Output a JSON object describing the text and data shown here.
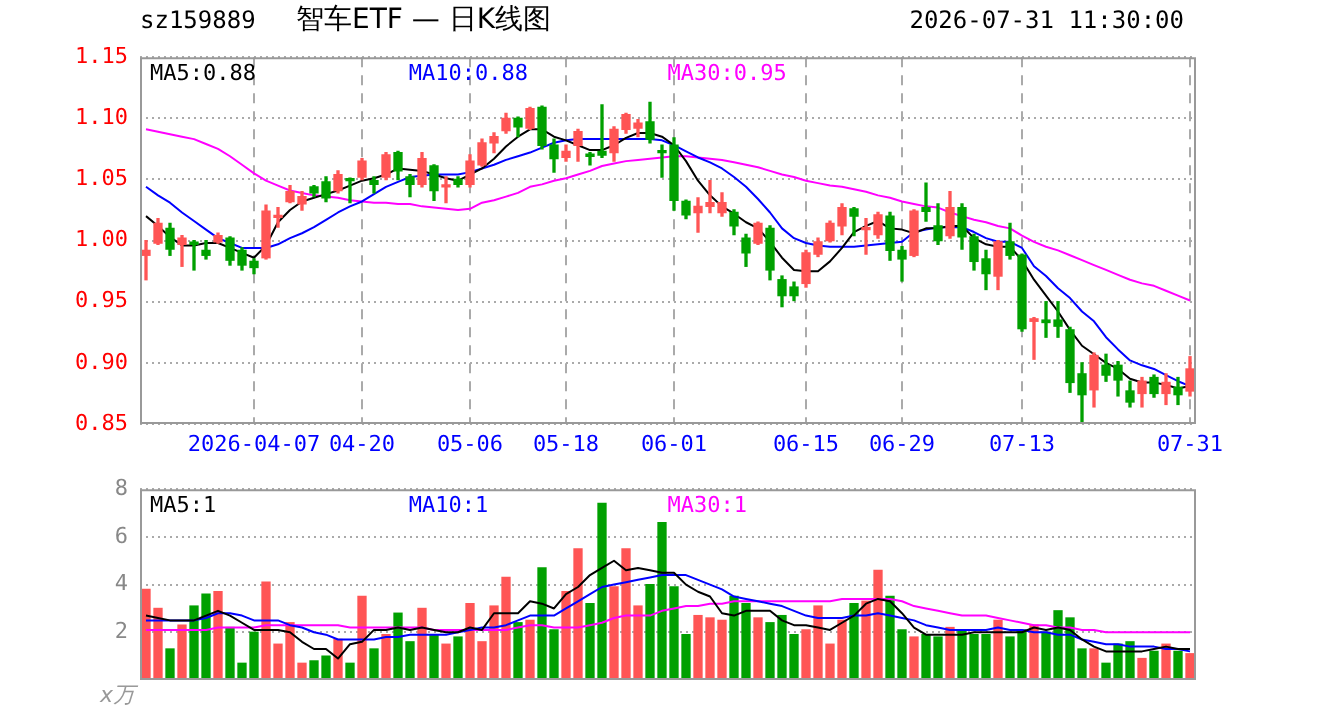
{
  "chart_data": [
    {
      "type": "candlestick",
      "title": "智车ETF — 日K线图",
      "annotations": [
        "sz159889",
        "2026-07-31 11:30:00"
      ],
      "categories": [
        null,
        null,
        null,
        null,
        null,
        null,
        null,
        null,
        null,
        "2026-04-07",
        null,
        null,
        null,
        null,
        null,
        null,
        null,
        null,
        "04-20",
        null,
        null,
        null,
        null,
        null,
        null,
        null,
        null,
        "05-06",
        null,
        null,
        null,
        null,
        null,
        null,
        null,
        "05-18",
        null,
        null,
        null,
        null,
        null,
        null,
        null,
        null,
        "06-01",
        null,
        null,
        null,
        null,
        null,
        null,
        null,
        null,
        null,
        null,
        "06-15",
        null,
        null,
        null,
        null,
        null,
        null,
        null,
        "06-29",
        null,
        null,
        null,
        null,
        null,
        null,
        null,
        null,
        null,
        "07-13",
        null,
        null,
        null,
        null,
        null,
        null,
        null,
        null,
        null,
        null,
        null,
        null,
        null,
        "07-31"
      ],
      "ohlc": [
        [
          0.988,
          1.0,
          0.968,
          0.992
        ],
        [
          0.998,
          1.018,
          0.997,
          1.014
        ],
        [
          1.01,
          1.014,
          0.988,
          0.993
        ],
        [
          0.997,
          1.004,
          0.979,
          1.002
        ],
        [
          0.998,
          1.0,
          0.976,
          0.997
        ],
        [
          0.992,
          1.0,
          0.985,
          0.988
        ],
        [
          0.999,
          1.006,
          0.998,
          1.004
        ],
        [
          1.002,
          1.003,
          0.98,
          0.984
        ],
        [
          0.992,
          0.994,
          0.976,
          0.98
        ],
        [
          0.983,
          0.985,
          0.973,
          0.978
        ],
        [
          0.986,
          1.029,
          0.985,
          1.024
        ],
        [
          1.019,
          1.027,
          1.011,
          1.02
        ],
        [
          1.032,
          1.045,
          1.031,
          1.04
        ],
        [
          1.03,
          1.04,
          1.025,
          1.036
        ],
        [
          1.044,
          1.045,
          1.036,
          1.039
        ],
        [
          1.048,
          1.052,
          1.032,
          1.035
        ],
        [
          1.041,
          1.057,
          1.039,
          1.054
        ],
        [
          1.05,
          1.051,
          1.031,
          1.049
        ],
        [
          1.052,
          1.067,
          1.05,
          1.065
        ],
        [
          1.049,
          1.052,
          1.039,
          1.046
        ],
        [
          1.052,
          1.072,
          1.05,
          1.07
        ],
        [
          1.072,
          1.073,
          1.05,
          1.057
        ],
        [
          1.052,
          1.054,
          1.036,
          1.046
        ],
        [
          1.046,
          1.072,
          1.044,
          1.067
        ],
        [
          1.061,
          1.062,
          1.033,
          1.041
        ],
        [
          1.044,
          1.052,
          1.031,
          1.045
        ],
        [
          1.05,
          1.052,
          1.044,
          1.046
        ],
        [
          1.046,
          1.07,
          1.044,
          1.065
        ],
        [
          1.062,
          1.083,
          1.061,
          1.08
        ],
        [
          1.08,
          1.088,
          1.072,
          1.085
        ],
        [
          1.09,
          1.104,
          1.088,
          1.1
        ],
        [
          1.1,
          1.101,
          1.085,
          1.093
        ],
        [
          1.092,
          1.109,
          1.091,
          1.108
        ],
        [
          1.109,
          1.11,
          1.075,
          1.078
        ],
        [
          1.078,
          1.083,
          1.056,
          1.067
        ],
        [
          1.068,
          1.078,
          1.065,
          1.073
        ],
        [
          1.078,
          1.091,
          1.065,
          1.089
        ],
        [
          1.07,
          1.072,
          1.062,
          1.069
        ],
        [
          1.073,
          1.111,
          1.068,
          1.07
        ],
        [
          1.072,
          1.093,
          1.065,
          1.091
        ],
        [
          1.091,
          1.104,
          1.088,
          1.103
        ],
        [
          1.092,
          1.099,
          1.085,
          1.096
        ],
        [
          1.097,
          1.113,
          1.08,
          1.083
        ],
        [
          1.073,
          1.078,
          1.052,
          1.072
        ],
        [
          1.078,
          1.084,
          1.025,
          1.033
        ],
        [
          1.032,
          1.033,
          1.018,
          1.021
        ],
        [
          1.023,
          1.035,
          1.007,
          1.028
        ],
        [
          1.028,
          1.049,
          1.023,
          1.031
        ],
        [
          1.023,
          1.039,
          1.02,
          1.031
        ],
        [
          1.023,
          1.025,
          1.005,
          1.012
        ],
        [
          1.002,
          1.005,
          0.979,
          0.99
        ],
        [
          0.998,
          1.015,
          0.997,
          1.014
        ],
        [
          1.01,
          1.012,
          0.968,
          0.976
        ],
        [
          0.968,
          0.971,
          0.946,
          0.955
        ],
        [
          0.962,
          0.966,
          0.951,
          0.955
        ],
        [
          0.965,
          0.992,
          0.962,
          0.99
        ],
        [
          0.989,
          1.002,
          0.987,
          0.999
        ],
        [
          1.0,
          1.016,
          0.999,
          1.014
        ],
        [
          1.012,
          1.03,
          1.005,
          1.027
        ],
        [
          1.026,
          1.027,
          1.004,
          1.02
        ],
        [
          1.009,
          1.018,
          0.989,
          1.01
        ],
        [
          1.005,
          1.023,
          1.002,
          1.021
        ],
        [
          1.02,
          1.023,
          0.984,
          0.992
        ],
        [
          0.992,
          0.995,
          0.967,
          0.985
        ],
        [
          0.988,
          1.025,
          0.987,
          1.024
        ],
        [
          1.027,
          1.047,
          1.016,
          1.024
        ],
        [
          1.012,
          1.03,
          0.997,
          1.0
        ],
        [
          1.004,
          1.04,
          1.002,
          1.027
        ],
        [
          1.027,
          1.03,
          0.993,
          1.003
        ],
        [
          1.003,
          1.005,
          0.976,
          0.983
        ],
        [
          0.985,
          0.992,
          0.96,
          0.973
        ],
        [
          0.971,
          1.0,
          0.96,
          0.999
        ],
        [
          0.999,
          1.014,
          0.985,
          0.988
        ],
        [
          0.988,
          0.989,
          0.926,
          0.928
        ],
        [
          0.934,
          0.937,
          0.903,
          0.936
        ],
        [
          0.935,
          0.95,
          0.921,
          0.933
        ],
        [
          0.935,
          0.95,
          0.921,
          0.93
        ],
        [
          0.927,
          0.929,
          0.876,
          0.884
        ],
        [
          0.891,
          0.9,
          0.852,
          0.874
        ],
        [
          0.878,
          0.908,
          0.864,
          0.906
        ],
        [
          0.898,
          0.907,
          0.885,
          0.89
        ],
        [
          0.898,
          0.901,
          0.873,
          0.886
        ],
        [
          0.877,
          0.885,
          0.864,
          0.868
        ],
        [
          0.875,
          0.888,
          0.864,
          0.885
        ],
        [
          0.888,
          0.89,
          0.872,
          0.875
        ],
        [
          0.875,
          0.891,
          0.866,
          0.884
        ],
        [
          0.88,
          0.888,
          0.866,
          0.874
        ],
        [
          0.877,
          0.905,
          0.873,
          0.895
        ]
      ],
      "colors": [
        "#ff5555",
        "#ff5555",
        "#00a000",
        "#ff5555",
        "#00a000",
        "#00a000",
        "#ff5555",
        "#00a000",
        "#00a000",
        "#00a000",
        "#ff5555",
        "#ff5555",
        "#ff5555",
        "#ff5555",
        "#00a000",
        "#00a000",
        "#ff5555",
        "#00a000",
        "#ff5555",
        "#00a000",
        "#ff5555",
        "#00a000",
        "#00a000",
        "#ff5555",
        "#00a000",
        "#ff5555",
        "#00a000",
        "#ff5555",
        "#ff5555",
        "#ff5555",
        "#ff5555",
        "#00a000",
        "#ff5555",
        "#00a000",
        "#00a000",
        "#ff5555",
        "#ff5555",
        "#00a000",
        "#00a000",
        "#ff5555",
        "#ff5555",
        "#ff5555",
        "#00a000",
        "#00a000",
        "#00a000",
        "#00a000",
        "#ff5555",
        "#ff5555",
        "#ff5555",
        "#00a000",
        "#00a000",
        "#ff5555",
        "#00a000",
        "#00a000",
        "#00a000",
        "#ff5555",
        "#ff5555",
        "#ff5555",
        "#ff5555",
        "#00a000",
        "#ff5555",
        "#ff5555",
        "#00a000",
        "#00a000",
        "#ff5555",
        "#00a000",
        "#00a000",
        "#ff5555",
        "#00a000",
        "#00a000",
        "#00a000",
        "#ff5555",
        "#00a000",
        "#00a000",
        "#ff5555",
        "#00a000",
        "#00a000",
        "#00a000",
        "#00a000",
        "#ff5555",
        "#00a000",
        "#00a000",
        "#00a000",
        "#ff5555",
        "#00a000",
        "#ff5555",
        "#00a000",
        "#ff5555"
      ],
      "series": [
        {
          "name": "MA5:0.88",
          "type": "line",
          "color": "#000000",
          "values": [
            1.02,
            1.012,
            1.003,
            0.996,
            0.996,
            0.998,
            0.998,
            0.994,
            0.99,
            0.986,
            0.996,
            1.015,
            1.025,
            1.032,
            1.035,
            1.038,
            1.041,
            1.045,
            1.049,
            1.051,
            1.054,
            1.059,
            1.058,
            1.057,
            1.054,
            1.051,
            1.049,
            1.054,
            1.059,
            1.067,
            1.077,
            1.085,
            1.091,
            1.091,
            1.085,
            1.082,
            1.078,
            1.074,
            1.074,
            1.078,
            1.084,
            1.088,
            1.088,
            1.085,
            1.078,
            1.065,
            1.049,
            1.037,
            1.028,
            1.022,
            1.015,
            1.01,
            0.999,
            0.986,
            0.976,
            0.975,
            0.975,
            0.983,
            0.994,
            1.007,
            1.012,
            1.016,
            1.01,
            1.009,
            1.006,
            1.01,
            1.01,
            1.012,
            1.012,
            1.002,
            0.997,
            0.995,
            0.995,
            0.984,
            0.968,
            0.955,
            0.942,
            0.927,
            0.914,
            0.907,
            0.9,
            0.895,
            0.887,
            0.884,
            0.884,
            0.882,
            0.879,
            0.881
          ]
        },
        {
          "name": "MA10:0.88",
          "type": "line",
          "color": "#0000ff",
          "values": [
            1.044,
            1.037,
            1.031,
            1.023,
            1.016,
            1.009,
            1.002,
            0.998,
            0.994,
            0.994,
            0.994,
            0.997,
            1.002,
            1.006,
            1.011,
            1.017,
            1.023,
            1.028,
            1.032,
            1.038,
            1.044,
            1.048,
            1.052,
            1.053,
            1.054,
            1.054,
            1.054,
            1.056,
            1.059,
            1.062,
            1.066,
            1.069,
            1.072,
            1.076,
            1.08,
            1.082,
            1.083,
            1.083,
            1.083,
            1.083,
            1.083,
            1.083,
            1.083,
            1.082,
            1.078,
            1.073,
            1.068,
            1.064,
            1.059,
            1.052,
            1.044,
            1.034,
            1.023,
            1.01,
            1.002,
            0.998,
            0.996,
            0.995,
            0.995,
            0.995,
            0.996,
            0.997,
            0.998,
            0.999,
            1.007,
            1.009,
            1.011,
            1.011,
            1.011,
            1.007,
            1.002,
            0.999,
            0.999,
            0.994,
            0.979,
            0.971,
            0.961,
            0.953,
            0.942,
            0.934,
            0.921,
            0.911,
            0.902,
            0.898,
            0.895,
            0.89,
            0.885,
            0.881
          ]
        },
        {
          "name": "MA30:0.95",
          "type": "line",
          "color": "#ff00ff",
          "values": [
            1.091,
            1.089,
            1.087,
            1.085,
            1.083,
            1.079,
            1.075,
            1.069,
            1.062,
            1.055,
            1.049,
            1.045,
            1.041,
            1.039,
            1.037,
            1.036,
            1.035,
            1.033,
            1.032,
            1.031,
            1.031,
            1.03,
            1.03,
            1.028,
            1.027,
            1.026,
            1.025,
            1.026,
            1.031,
            1.033,
            1.036,
            1.039,
            1.044,
            1.046,
            1.049,
            1.051,
            1.054,
            1.057,
            1.061,
            1.063,
            1.065,
            1.066,
            1.067,
            1.068,
            1.069,
            1.069,
            1.068,
            1.067,
            1.066,
            1.064,
            1.062,
            1.06,
            1.057,
            1.054,
            1.052,
            1.049,
            1.047,
            1.045,
            1.044,
            1.042,
            1.04,
            1.037,
            1.035,
            1.032,
            1.03,
            1.028,
            1.027,
            1.023,
            1.02,
            1.017,
            1.015,
            1.012,
            1.01,
            1.004,
            0.999,
            0.995,
            0.992,
            0.988,
            0.984,
            0.98,
            0.976,
            0.972,
            0.968,
            0.965,
            0.963,
            0.959,
            0.955,
            0.951
          ]
        }
      ],
      "ylim": [
        0.85,
        1.15
      ],
      "yticks": [
        0.85,
        {
          "value": 0.9,
          "label": "0.90"
        },
        0.95,
        {
          "value": 1.0,
          "label": "1.00"
        },
        1.05,
        {
          "value": 1.1,
          "label": "1.10"
        },
        1.15
      ],
      "grid": true,
      "legend": "top",
      "marker": "none"
    },
    {
      "type": "bar",
      "ylabel": "x万",
      "categories": [
        null,
        null,
        null,
        null,
        null,
        null,
        null,
        null,
        null,
        null,
        null,
        null,
        null,
        null,
        null,
        null,
        null,
        null,
        null,
        null,
        null,
        null,
        null,
        null,
        null,
        null,
        null,
        null,
        null,
        null,
        null,
        null,
        null,
        null,
        null,
        null,
        null,
        null,
        null,
        null,
        null,
        null,
        null,
        null,
        null,
        null,
        null,
        null,
        null,
        null,
        null,
        null,
        null,
        null,
        null,
        null,
        null,
        null,
        null,
        null,
        null,
        null,
        null,
        null,
        null,
        null,
        null,
        null,
        null,
        null,
        null,
        null,
        null,
        null,
        null,
        null,
        null,
        null,
        null,
        null,
        null,
        null,
        null,
        null,
        null,
        null,
        null,
        null
      ],
      "series": [
        {
          "type": "bar",
          "values": [
            3.8,
            3.0,
            1.3,
            2.3,
            3.1,
            3.6,
            3.7,
            2.2,
            0.7,
            2.0,
            4.1,
            1.5,
            2.4,
            0.7,
            0.8,
            1.0,
            1.7,
            0.7,
            3.5,
            1.3,
            1.9,
            2.8,
            1.6,
            3.0,
            1.9,
            1.5,
            1.8,
            3.2,
            1.6,
            3.1,
            4.3,
            2.4,
            2.5,
            4.7,
            2.1,
            3.7,
            5.5,
            3.2,
            7.4,
            3.9,
            5.5,
            3.1,
            4.0,
            6.6,
            3.9,
            1.9,
            2.7,
            2.6,
            2.5,
            3.5,
            3.2,
            2.6,
            2.4,
            2.7,
            1.9,
            2.1,
            3.1,
            1.5,
            2.5,
            3.2,
            3.3,
            4.6,
            3.5,
            2.1,
            1.8,
            1.9,
            1.8,
            2.2,
            2.1,
            1.9,
            1.9,
            2.5,
            1.8,
            2.1,
            2.3,
            2.0,
            2.9,
            2.6,
            1.3,
            1.3,
            0.7,
            1.5,
            1.6,
            0.9,
            1.2,
            1.5,
            1.2,
            1.1
          ],
          "colors": [
            "#ff5555",
            "#ff5555",
            "#00a000",
            "#ff5555",
            "#00a000",
            "#00a000",
            "#ff5555",
            "#00a000",
            "#00a000",
            "#00a000",
            "#ff5555",
            "#ff5555",
            "#ff5555",
            "#ff5555",
            "#00a000",
            "#00a000",
            "#ff5555",
            "#00a000",
            "#ff5555",
            "#00a000",
            "#ff5555",
            "#00a000",
            "#00a000",
            "#ff5555",
            "#00a000",
            "#ff5555",
            "#00a000",
            "#ff5555",
            "#ff5555",
            "#ff5555",
            "#ff5555",
            "#00a000",
            "#ff5555",
            "#00a000",
            "#00a000",
            "#ff5555",
            "#ff5555",
            "#00a000",
            "#00a000",
            "#ff5555",
            "#ff5555",
            "#ff5555",
            "#00a000",
            "#00a000",
            "#00a000",
            "#00a000",
            "#ff5555",
            "#ff5555",
            "#ff5555",
            "#00a000",
            "#00a000",
            "#ff5555",
            "#00a000",
            "#00a000",
            "#00a000",
            "#ff5555",
            "#ff5555",
            "#ff5555",
            "#ff5555",
            "#00a000",
            "#ff5555",
            "#ff5555",
            "#00a000",
            "#00a000",
            "#ff5555",
            "#00a000",
            "#00a000",
            "#ff5555",
            "#00a000",
            "#00a000",
            "#00a000",
            "#ff5555",
            "#00a000",
            "#00a000",
            "#ff5555",
            "#00a000",
            "#00a000",
            "#00a000",
            "#00a000",
            "#ff5555",
            "#00a000",
            "#00a000",
            "#00a000",
            "#ff5555",
            "#00a000",
            "#ff5555",
            "#00a000",
            "#ff5555"
          ]
        },
        {
          "name": "MA5:1",
          "type": "line",
          "color": "#000000",
          "values": [
            2.7,
            2.6,
            2.5,
            2.5,
            2.5,
            2.7,
            2.9,
            2.7,
            2.4,
            2.1,
            2.1,
            2.1,
            2.0,
            1.6,
            1.3,
            1.3,
            0.9,
            1.5,
            1.6,
            2.1,
            2.1,
            2.2,
            2.1,
            2.2,
            2.1,
            2.0,
            2.0,
            2.2,
            2.1,
            2.8,
            2.8,
            2.8,
            3.3,
            3.2,
            3.0,
            3.6,
            3.9,
            4.4,
            4.7,
            5.0,
            4.6,
            4.7,
            4.6,
            4.5,
            4.5,
            4.0,
            3.7,
            3.5,
            2.8,
            2.7,
            2.9,
            2.9,
            2.9,
            2.5,
            2.3,
            2.3,
            2.2,
            2.1,
            2.4,
            2.7,
            3.2,
            3.4,
            3.3,
            2.8,
            2.2,
            1.9,
            1.9,
            1.9,
            1.9,
            2.0,
            2.0,
            2.0,
            2.0,
            2.0,
            2.2,
            2.1,
            2.2,
            2.1,
            1.7,
            1.4,
            1.2,
            1.2,
            1.2,
            1.2,
            1.3,
            1.4,
            1.3,
            1.3
          ]
        },
        {
          "name": "MA10:1",
          "type": "line",
          "color": "#0000ff",
          "values": [
            2.5,
            2.5,
            2.5,
            2.5,
            2.5,
            2.6,
            2.8,
            2.8,
            2.7,
            2.5,
            2.5,
            2.5,
            2.3,
            2.2,
            2.0,
            1.9,
            1.7,
            1.7,
            1.7,
            1.7,
            1.8,
            1.8,
            1.9,
            1.9,
            1.9,
            1.9,
            2.0,
            2.1,
            2.2,
            2.2,
            2.3,
            2.5,
            2.7,
            2.7,
            2.7,
            3.0,
            3.3,
            3.6,
            3.9,
            4.0,
            4.1,
            4.2,
            4.3,
            4.4,
            4.4,
            4.4,
            4.2,
            4.0,
            3.8,
            3.5,
            3.4,
            3.3,
            3.2,
            3.1,
            2.9,
            2.7,
            2.6,
            2.6,
            2.6,
            2.7,
            2.7,
            2.8,
            2.7,
            2.6,
            2.5,
            2.3,
            2.2,
            2.1,
            2.1,
            2.1,
            2.1,
            2.2,
            2.1,
            2.1,
            2.0,
            2.0,
            1.9,
            1.9,
            1.7,
            1.6,
            1.5,
            1.5,
            1.4,
            1.4,
            1.4,
            1.3,
            1.3,
            1.2
          ]
        },
        {
          "name": "MA30:1",
          "type": "line",
          "color": "#ff00ff",
          "values": [
            2.1,
            2.1,
            2.1,
            2.1,
            2.1,
            2.1,
            2.2,
            2.2,
            2.2,
            2.2,
            2.3,
            2.3,
            2.3,
            2.3,
            2.3,
            2.3,
            2.3,
            2.2,
            2.2,
            2.2,
            2.2,
            2.2,
            2.2,
            2.2,
            2.1,
            2.1,
            2.1,
            2.1,
            2.1,
            2.1,
            2.1,
            2.2,
            2.3,
            2.3,
            2.2,
            2.2,
            2.2,
            2.3,
            2.4,
            2.6,
            2.7,
            2.7,
            2.7,
            2.9,
            3.0,
            3.1,
            3.1,
            3.2,
            3.2,
            3.3,
            3.3,
            3.3,
            3.3,
            3.3,
            3.3,
            3.3,
            3.3,
            3.3,
            3.4,
            3.4,
            3.4,
            3.4,
            3.4,
            3.3,
            3.1,
            3.0,
            2.9,
            2.8,
            2.7,
            2.7,
            2.7,
            2.6,
            2.5,
            2.4,
            2.3,
            2.3,
            2.2,
            2.2,
            2.1,
            2.1,
            2.0,
            2.0,
            2.0,
            2.0,
            2.0,
            2.0,
            2.0,
            2.0
          ]
        }
      ],
      "ylim": [
        0,
        8
      ],
      "yticks": [
        2,
        4,
        6,
        8
      ],
      "grid": "y",
      "legend": "top",
      "marker": "none",
      "tick_labels": "y"
    }
  ]
}
